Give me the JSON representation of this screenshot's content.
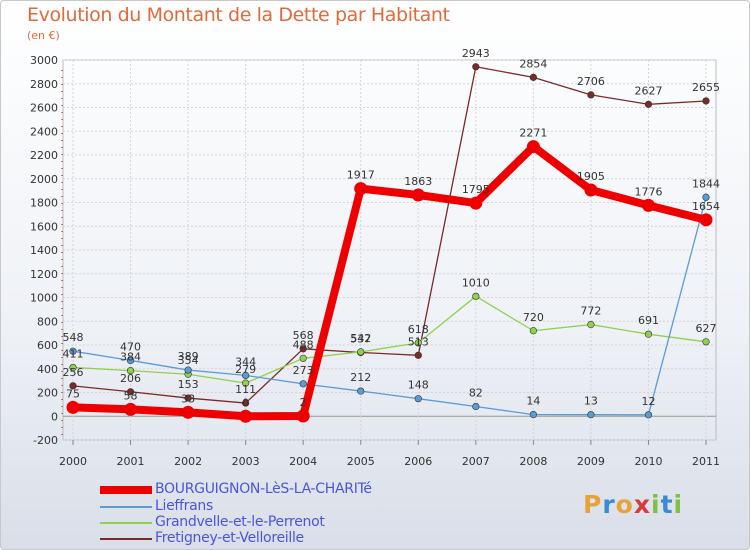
{
  "header": {
    "title": "Evolution du Montant de la Dette par Habitant",
    "unit": "(en €)"
  },
  "brand": {
    "letters": [
      "P",
      "r",
      "o",
      "x",
      "i",
      "t",
      "i"
    ],
    "colors": [
      "#e8a23a",
      "#3b8ad8",
      "#e8a23a",
      "#d83b3b",
      "#7cc242",
      "#3b8ad8",
      "#7cc242"
    ]
  },
  "chart_data": {
    "type": "line",
    "title": "Evolution du Montant de la Dette par Habitant",
    "ylabel": "(en €)",
    "xlabel": "",
    "categories": [
      "2000",
      "2001",
      "2002",
      "2003",
      "2004",
      "2005",
      "2006",
      "2007",
      "2008",
      "2009",
      "2010",
      "2011"
    ],
    "ylim": [
      -200,
      3000
    ],
    "yticks": [
      "-200",
      "0",
      "200",
      "400",
      "600",
      "800",
      "1000",
      "1200",
      "1400",
      "1600",
      "1800",
      "2000",
      "2200",
      "2400",
      "2600",
      "2800",
      "3000"
    ],
    "grid": true,
    "legend_position": "bottom-left",
    "series": [
      {
        "name": "BOURGUIGNON-LèS-LA-CHARITé",
        "color": "#ee0000",
        "values": [
          75,
          58,
          33,
          0,
          2,
          1917,
          1863,
          1795,
          2271,
          1905,
          1776,
          1654
        ],
        "labels": [
          "75",
          "58",
          "33",
          "0",
          "2",
          "1917",
          "1863",
          "1795",
          "2271",
          "1905",
          "1776",
          "1654"
        ]
      },
      {
        "name": "Lieffrans",
        "color": "#5b9bd5",
        "values": [
          548,
          470,
          389,
          344,
          273,
          212,
          148,
          82,
          14,
          13,
          12,
          1844
        ],
        "labels": [
          "548",
          "470",
          "389",
          "344",
          "273",
          "212",
          "148",
          "82",
          "14",
          "13",
          "12",
          "1844"
        ]
      },
      {
        "name": "Grandvelle-et-le-Perrenot",
        "color": "#8fd14f",
        "values": [
          411,
          384,
          354,
          279,
          488,
          542,
          618,
          1010,
          720,
          772,
          691,
          627
        ],
        "labels": [
          "411",
          "384",
          "354",
          "279",
          "488",
          "542",
          "618",
          "1010",
          "720",
          "772",
          "691",
          "627"
        ]
      },
      {
        "name": "Fretigney-et-Velloreille",
        "color": "#7a2a2a",
        "values": [
          256,
          206,
          153,
          111,
          568,
          537,
          513,
          2943,
          2854,
          2706,
          2627,
          2655
        ],
        "labels": [
          "256",
          "206",
          "153",
          "111",
          "568",
          "537",
          "513",
          "2943",
          "2854",
          "2706",
          "2627",
          "2655"
        ]
      }
    ]
  }
}
